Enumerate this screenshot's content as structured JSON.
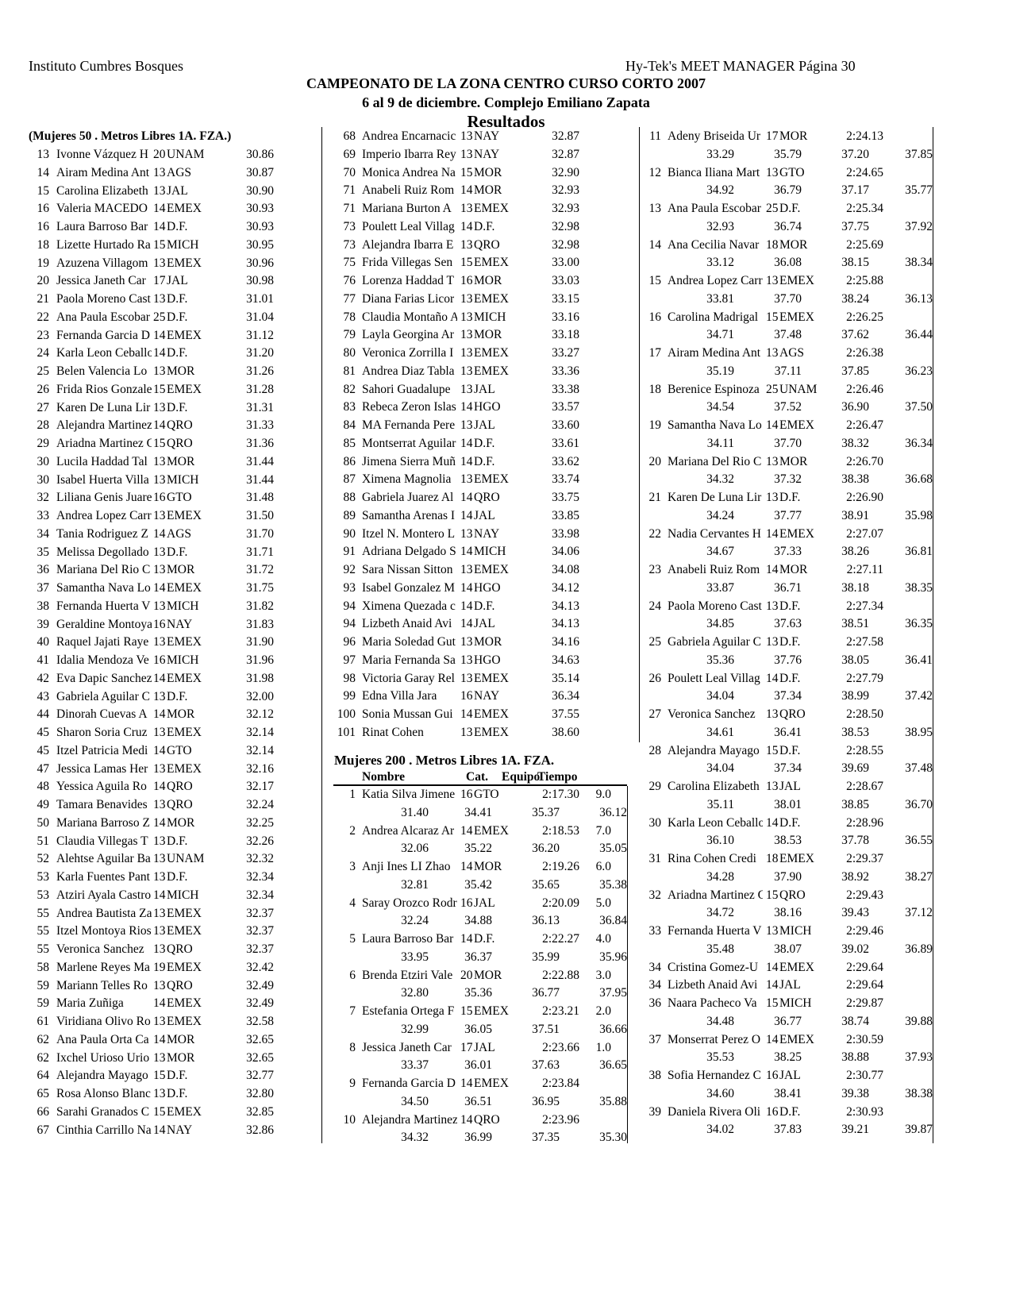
{
  "header": {
    "org": "Instituto Cumbres Bosques",
    "software_page": "Hy-Tek's MEET MANAGER  Página 30",
    "title": "CAMPEONATO DE LA ZONA CENTRO CURSO CORTO 2007",
    "subtitle": "6 al 9 de diciembre. Complejo Emiliano Zapata",
    "section": "Resultados"
  },
  "event50": {
    "title": "(Mujeres 50 . Metros Libres 1A. FZA.)",
    "rows": [
      [
        "13",
        "Ivonne Vázquez H",
        "20",
        "UNAM",
        "30.86"
      ],
      [
        "14",
        "Airam Medina Ant",
        "13",
        "AGS",
        "30.87"
      ],
      [
        "15",
        "Carolina Elizabeth",
        "13",
        "JAL",
        "30.90"
      ],
      [
        "16",
        "Valeria MACEDO",
        "14",
        "EMEX",
        "30.93"
      ],
      [
        "16",
        "Laura Barroso Bar",
        "14",
        "D.F.",
        "30.93"
      ],
      [
        "18",
        "Lizette Hurtado Ra",
        "15",
        "MICH",
        "30.95"
      ],
      [
        "19",
        "Azuzena Villagom",
        "13",
        "EMEX",
        "30.96"
      ],
      [
        "20",
        "Jessica Janeth Car",
        "17",
        "JAL",
        "30.98"
      ],
      [
        "21",
        "Paola Moreno Cast",
        "13",
        "D.F.",
        "31.01"
      ],
      [
        "22",
        "Ana Paula Escobar",
        "25",
        "D.F.",
        "31.04"
      ],
      [
        "23",
        "Fernanda Garcia D",
        "14",
        "EMEX",
        "31.12"
      ],
      [
        "24",
        "Karla Leon Ceballo",
        "14",
        "D.F.",
        "31.20"
      ],
      [
        "25",
        "Belen Valencia Lo",
        "13",
        "MOR",
        "31.26"
      ],
      [
        "26",
        "Frida Rios Gonzale",
        "15",
        "EMEX",
        "31.28"
      ],
      [
        "27",
        "Karen De Luna Lir",
        "13",
        "D.F.",
        "31.31"
      ],
      [
        "28",
        "Alejandra Martinez",
        "14",
        "QRO",
        "31.33"
      ],
      [
        "29",
        "Ariadna Martinez C",
        "15",
        "QRO",
        "31.36"
      ],
      [
        "30",
        "Lucila Haddad Tal",
        "13",
        "MOR",
        "31.44"
      ],
      [
        "30",
        "Isabel Huerta Villa",
        "13",
        "MICH",
        "31.44"
      ],
      [
        "32",
        "Liliana Genis Juare",
        "16",
        "GTO",
        "31.48"
      ],
      [
        "33",
        "Andrea Lopez Carr",
        "13",
        "EMEX",
        "31.50"
      ],
      [
        "34",
        "Tania Rodriguez Z",
        "14",
        "AGS",
        "31.70"
      ],
      [
        "35",
        "Melissa Degollado",
        "13",
        "D.F.",
        "31.71"
      ],
      [
        "36",
        "Mariana Del Rio C",
        "13",
        "MOR",
        "31.72"
      ],
      [
        "37",
        "Samantha Nava Lo",
        "14",
        "EMEX",
        "31.75"
      ],
      [
        "38",
        "Fernanda Huerta V",
        "13",
        "MICH",
        "31.82"
      ],
      [
        "39",
        "Geraldine Montoya",
        "16",
        "NAY",
        "31.83"
      ],
      [
        "40",
        "Raquel Jajati Raye",
        "13",
        "EMEX",
        "31.90"
      ],
      [
        "41",
        "Idalia Mendoza Ve",
        "16",
        "MICH",
        "31.96"
      ],
      [
        "42",
        "Eva Dapic Sanchez",
        "14",
        "EMEX",
        "31.98"
      ],
      [
        "43",
        "Gabriela Aguilar C",
        "13",
        "D.F.",
        "32.00"
      ],
      [
        "44",
        "Dinorah Cuevas A",
        "14",
        "MOR",
        "32.12"
      ],
      [
        "45",
        "Sharon Soria Cruz",
        "13",
        "EMEX",
        "32.14"
      ],
      [
        "45",
        "Itzel Patricia Medi",
        "14",
        "GTO",
        "32.14"
      ],
      [
        "47",
        "Jessica Lamas Her",
        "13",
        "EMEX",
        "32.16"
      ],
      [
        "48",
        "Yessica Aguila Ro",
        "14",
        "QRO",
        "32.17"
      ],
      [
        "49",
        "Tamara Benavides",
        "13",
        "QRO",
        "32.24"
      ],
      [
        "50",
        "Mariana Barroso Z",
        "14",
        "MOR",
        "32.25"
      ],
      [
        "51",
        "Claudia Villegas T",
        "13",
        "D.F.",
        "32.26"
      ],
      [
        "52",
        "Alehtse Aguilar Ba",
        "13",
        "UNAM",
        "32.32"
      ],
      [
        "53",
        "Karla Fuentes Pant",
        "13",
        "D.F.",
        "32.34"
      ],
      [
        "53",
        "Atziri Ayala Castro",
        "14",
        "MICH",
        "32.34"
      ],
      [
        "55",
        "Andrea Bautista Za",
        "13",
        "EMEX",
        "32.37"
      ],
      [
        "55",
        "Itzel Montoya Rios",
        "13",
        "EMEX",
        "32.37"
      ],
      [
        "55",
        "Veronica Sanchez",
        "13",
        "QRO",
        "32.37"
      ],
      [
        "58",
        "Marlene Reyes Ma",
        "19",
        "EMEX",
        "32.42"
      ],
      [
        "59",
        "Mariann Telles Ro",
        "13",
        "QRO",
        "32.49"
      ],
      [
        "59",
        "Maria Zuñiga",
        "14",
        "EMEX",
        "32.49"
      ],
      [
        "61",
        "Viridiana Olivo Ro",
        "13",
        "EMEX",
        "32.58"
      ],
      [
        "62",
        "Ana Paula Orta Ca",
        "14",
        "MOR",
        "32.65"
      ],
      [
        "62",
        "Ixchel Urioso Urio",
        "13",
        "MOR",
        "32.65"
      ],
      [
        "64",
        "Alejandra Mayago",
        "15",
        "D.F.",
        "32.77"
      ],
      [
        "65",
        "Rosa Alonso Blanc",
        "13",
        "D.F.",
        "32.80"
      ],
      [
        "66",
        "Sarahi Granados C",
        "15",
        "EMEX",
        "32.85"
      ],
      [
        "67",
        "Cinthia Carrillo Na",
        "14",
        "NAY",
        "32.86"
      ],
      [
        "68",
        "Andrea Encarnacic",
        "13",
        "NAY",
        "32.87"
      ],
      [
        "69",
        "Imperio Ibarra Rey",
        "13",
        "NAY",
        "32.87"
      ],
      [
        "70",
        "Monica Andrea Na",
        "15",
        "MOR",
        "32.90"
      ],
      [
        "71",
        "Anabeli Ruiz Rom",
        "14",
        "MOR",
        "32.93"
      ],
      [
        "71",
        "Mariana Burton A",
        "13",
        "EMEX",
        "32.93"
      ],
      [
        "73",
        "Poulett Leal Villag",
        "14",
        "D.F.",
        "32.98"
      ],
      [
        "73",
        "Alejandra Ibarra E",
        "13",
        "QRO",
        "32.98"
      ],
      [
        "75",
        "Frida Villegas Sen",
        "15",
        "EMEX",
        "33.00"
      ],
      [
        "76",
        "Lorenza Haddad T",
        "16",
        "MOR",
        "33.03"
      ],
      [
        "77",
        "Diana Farias Licor",
        "13",
        "EMEX",
        "33.15"
      ],
      [
        "78",
        "Claudia Montaño A",
        "13",
        "MICH",
        "33.16"
      ],
      [
        "79",
        "Layla Georgina Ar",
        "13",
        "MOR",
        "33.18"
      ],
      [
        "80",
        "Veronica Zorrilla I",
        "13",
        "EMEX",
        "33.27"
      ],
      [
        "81",
        "Andrea Diaz Tabla",
        "13",
        "EMEX",
        "33.36"
      ],
      [
        "82",
        "Sahori Guadalupe",
        "13",
        "JAL",
        "33.38"
      ],
      [
        "83",
        "Rebeca Zeron Islas",
        "14",
        "HGO",
        "33.57"
      ],
      [
        "84",
        "MA Fernanda Pere",
        "13",
        "JAL",
        "33.60"
      ],
      [
        "85",
        "Montserrat Aguilar",
        "14",
        "D.F.",
        "33.61"
      ],
      [
        "86",
        "Jimena Sierra Muñ",
        "14",
        "D.F.",
        "33.62"
      ],
      [
        "87",
        "Ximena Magnolia",
        "13",
        "EMEX",
        "33.74"
      ],
      [
        "88",
        "Gabriela Juarez Al",
        "14",
        "QRO",
        "33.75"
      ],
      [
        "89",
        "Samantha Arenas I",
        "14",
        "JAL",
        "33.85"
      ],
      [
        "90",
        "Itzel N. Montero L",
        "13",
        "NAY",
        "33.98"
      ],
      [
        "91",
        "Adriana Delgado S",
        "14",
        "MICH",
        "34.06"
      ],
      [
        "92",
        "Sara Nissan Sitton",
        "13",
        "EMEX",
        "34.08"
      ],
      [
        "93",
        "Isabel Gonzalez M",
        "14",
        "HGO",
        "34.12"
      ],
      [
        "94",
        "Ximena Quezada c",
        "14",
        "D.F.",
        "34.13"
      ],
      [
        "94",
        "Lizbeth Anaid Avi",
        "14",
        "JAL",
        "34.13"
      ],
      [
        "96",
        "Maria Soledad Gut",
        "13",
        "MOR",
        "34.16"
      ],
      [
        "97",
        "Maria Fernanda Sa",
        "13",
        "HGO",
        "34.63"
      ],
      [
        "98",
        "Victoria Garay Rel",
        "13",
        "EMEX",
        "35.14"
      ],
      [
        "99",
        "Edna Villa Jara",
        "16",
        "NAY",
        "36.34"
      ],
      [
        "100",
        "Sonia Mussan Gui",
        "14",
        "EMEX",
        "37.55"
      ],
      [
        "101",
        "Rinat Cohen",
        "13",
        "EMEX",
        "38.60"
      ]
    ]
  },
  "event200": {
    "title": "Mujeres 200 . Metros Libres 1A. FZA.",
    "columns": {
      "name": "Nombre",
      "cat": "Cat.",
      "team": "Equipo",
      "time": "Tiempo"
    },
    "rows": [
      [
        "1",
        "Katia Silva Jimene",
        "16",
        "GTO",
        "2:17.30",
        "9.0",
        [
          "31.40",
          "34.41",
          "35.37",
          "36.12"
        ]
      ],
      [
        "2",
        "Andrea Alcaraz Ar",
        "14",
        "EMEX",
        "2:18.53",
        "7.0",
        [
          "32.06",
          "35.22",
          "36.20",
          "35.05"
        ]
      ],
      [
        "3",
        "Anji Ines LI Zhao",
        "14",
        "MOR",
        "2:19.26",
        "6.0",
        [
          "32.81",
          "35.42",
          "35.65",
          "35.38"
        ]
      ],
      [
        "4",
        "Saray Orozco Rodr",
        "16",
        "JAL",
        "2:20.09",
        "5.0",
        [
          "32.24",
          "34.88",
          "36.13",
          "36.84"
        ]
      ],
      [
        "5",
        "Laura Barroso Bar",
        "14",
        "D.F.",
        "2:22.27",
        "4.0",
        [
          "33.95",
          "36.37",
          "35.99",
          "35.96"
        ]
      ],
      [
        "6",
        "Brenda Etziri Vale",
        "20",
        "MOR",
        "2:22.88",
        "3.0",
        [
          "32.80",
          "35.36",
          "36.77",
          "37.95"
        ]
      ],
      [
        "7",
        "Estefania Ortega F",
        "15",
        "EMEX",
        "2:23.21",
        "2.0",
        [
          "32.99",
          "36.05",
          "37.51",
          "36.66"
        ]
      ],
      [
        "8",
        "Jessica Janeth Car",
        "17",
        "JAL",
        "2:23.66",
        "1.0",
        [
          "33.37",
          "36.01",
          "37.63",
          "36.65"
        ]
      ],
      [
        "9",
        "Fernanda Garcia D",
        "14",
        "EMEX",
        "2:23.84",
        "",
        [
          "34.50",
          "36.51",
          "36.95",
          "35.88"
        ]
      ],
      [
        "10",
        "Alejandra Martinez",
        "14",
        "QRO",
        "2:23.96",
        "",
        [
          "34.32",
          "36.99",
          "37.35",
          "35.30"
        ]
      ],
      [
        "11",
        "Adeny Briseida Ur",
        "17",
        "MOR",
        "2:24.13",
        "",
        [
          "33.29",
          "35.79",
          "37.20",
          "37.85"
        ]
      ],
      [
        "12",
        "Bianca Iliana Mart",
        "13",
        "GTO",
        "2:24.65",
        "",
        [
          "34.92",
          "36.79",
          "37.17",
          "35.77"
        ]
      ],
      [
        "13",
        "Ana Paula Escobar",
        "25",
        "D.F.",
        "2:25.34",
        "",
        [
          "32.93",
          "36.74",
          "37.75",
          "37.92"
        ]
      ],
      [
        "14",
        "Ana Cecilia Navar",
        "18",
        "MOR",
        "2:25.69",
        "",
        [
          "33.12",
          "36.08",
          "38.15",
          "38.34"
        ]
      ],
      [
        "15",
        "Andrea Lopez Carr",
        "13",
        "EMEX",
        "2:25.88",
        "",
        [
          "33.81",
          "37.70",
          "38.24",
          "36.13"
        ]
      ],
      [
        "16",
        "Carolina Madrigal",
        "15",
        "EMEX",
        "2:26.25",
        "",
        [
          "34.71",
          "37.48",
          "37.62",
          "36.44"
        ]
      ],
      [
        "17",
        "Airam Medina Ant",
        "13",
        "AGS",
        "2:26.38",
        "",
        [
          "35.19",
          "37.11",
          "37.85",
          "36.23"
        ]
      ],
      [
        "18",
        "Berenice Espinoza",
        "25",
        "UNAM",
        "2:26.46",
        "",
        [
          "34.54",
          "37.52",
          "36.90",
          "37.50"
        ]
      ],
      [
        "19",
        "Samantha Nava Lo",
        "14",
        "EMEX",
        "2:26.47",
        "",
        [
          "34.11",
          "37.70",
          "38.32",
          "36.34"
        ]
      ],
      [
        "20",
        "Mariana Del Rio C",
        "13",
        "MOR",
        "2:26.70",
        "",
        [
          "34.32",
          "37.32",
          "38.38",
          "36.68"
        ]
      ],
      [
        "21",
        "Karen De Luna Lir",
        "13",
        "D.F.",
        "2:26.90",
        "",
        [
          "34.24",
          "37.77",
          "38.91",
          "35.98"
        ]
      ],
      [
        "22",
        "Nadia Cervantes H",
        "14",
        "EMEX",
        "2:27.07",
        "",
        [
          "34.67",
          "37.33",
          "38.26",
          "36.81"
        ]
      ],
      [
        "23",
        "Anabeli Ruiz Rom",
        "14",
        "MOR",
        "2:27.11",
        "",
        [
          "33.87",
          "36.71",
          "38.18",
          "38.35"
        ]
      ],
      [
        "24",
        "Paola Moreno Cast",
        "13",
        "D.F.",
        "2:27.34",
        "",
        [
          "34.85",
          "37.63",
          "38.51",
          "36.35"
        ]
      ],
      [
        "25",
        "Gabriela Aguilar C",
        "13",
        "D.F.",
        "2:27.58",
        "",
        [
          "35.36",
          "37.76",
          "38.05",
          "36.41"
        ]
      ],
      [
        "26",
        "Poulett Leal Villag",
        "14",
        "D.F.",
        "2:27.79",
        "",
        [
          "34.04",
          "37.34",
          "38.99",
          "37.42"
        ]
      ],
      [
        "27",
        "Veronica Sanchez",
        "13",
        "QRO",
        "2:28.50",
        "",
        [
          "34.61",
          "36.41",
          "38.53",
          "38.95"
        ]
      ],
      [
        "28",
        "Alejandra Mayago",
        "15",
        "D.F.",
        "2:28.55",
        "",
        [
          "34.04",
          "37.34",
          "39.69",
          "37.48"
        ]
      ],
      [
        "29",
        "Carolina Elizabeth",
        "13",
        "JAL",
        "2:28.67",
        "",
        [
          "35.11",
          "38.01",
          "38.85",
          "36.70"
        ]
      ],
      [
        "30",
        "Karla Leon Ceballo",
        "14",
        "D.F.",
        "2:28.96",
        "",
        [
          "36.10",
          "38.53",
          "37.78",
          "36.55"
        ]
      ],
      [
        "31",
        "Rina Cohen Credi",
        "18",
        "EMEX",
        "2:29.37",
        "",
        [
          "34.28",
          "37.90",
          "38.92",
          "38.27"
        ]
      ],
      [
        "32",
        "Ariadna Martinez C",
        "15",
        "QRO",
        "2:29.43",
        "",
        [
          "34.72",
          "38.16",
          "39.43",
          "37.12"
        ]
      ],
      [
        "33",
        "Fernanda Huerta V",
        "13",
        "MICH",
        "2:29.46",
        "",
        [
          "35.48",
          "38.07",
          "39.02",
          "36.89"
        ]
      ],
      [
        "34",
        "Cristina Gomez-U",
        "14",
        "EMEX",
        "2:29.64",
        "",
        []
      ],
      [
        "34",
        "Lizbeth Anaid Avi",
        "14",
        "JAL",
        "2:29.64",
        "",
        []
      ],
      [
        "36",
        "Naara Pacheco Va",
        "15",
        "MICH",
        "2:29.87",
        "",
        [
          "34.48",
          "36.77",
          "38.74",
          "39.88"
        ]
      ],
      [
        "37",
        "Monserrat Perez O",
        "14",
        "EMEX",
        "2:30.59",
        "",
        [
          "35.53",
          "38.25",
          "38.88",
          "37.93"
        ]
      ],
      [
        "38",
        "Sofia Hernandez C",
        "16",
        "JAL",
        "2:30.77",
        "",
        [
          "34.60",
          "38.41",
          "39.38",
          "38.38"
        ]
      ],
      [
        "39",
        "Daniela Rivera Oli",
        "16",
        "D.F.",
        "2:30.93",
        "",
        [
          "34.02",
          "37.83",
          "39.21",
          "39.87"
        ]
      ]
    ]
  }
}
